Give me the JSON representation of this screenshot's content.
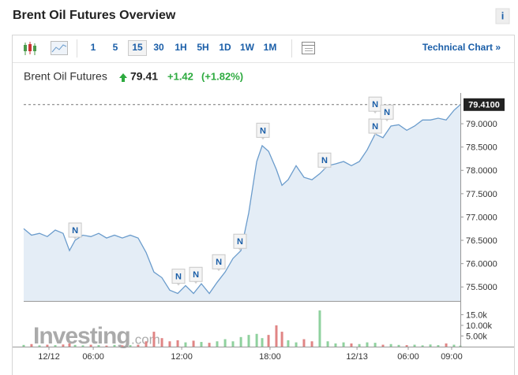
{
  "header": {
    "title": "Brent Oil Futures Overview",
    "info": "i"
  },
  "toolbar": {
    "intervals": [
      "1",
      "5",
      "15",
      "30",
      "1H",
      "5H",
      "1D",
      "1W",
      "1M"
    ],
    "active": 2,
    "technical_chart": "Technical Chart »"
  },
  "quote": {
    "name": "Brent Oil Futures",
    "price": "79.41",
    "change": "+1.42",
    "change_percent": "(+1.82%)"
  },
  "chart_data": {
    "type": "line",
    "color": "#6b9ccc",
    "fill": "#e4edf6",
    "x": [
      0,
      0.53,
      1.07,
      1.6,
      2.14,
      2.67,
      3.1,
      3.48,
      4.01,
      4.55,
      5.08,
      5.61,
      6.15,
      6.68,
      7.22,
      7.75,
      8.29,
      8.82,
      9.36,
      9.89,
      10.43,
      10.96,
      11.5,
      12.03,
      12.57,
      13.1,
      13.64,
      14.17,
      14.71,
      15.24,
      15.78,
      16.15,
      16.58,
      17.11,
      17.49,
      17.91,
      18.45,
      18.98,
      19.52,
      20.05,
      20.59,
      21.12,
      21.66,
      22.19,
      22.73,
      23.26,
      23.8,
      24.33,
      24.87,
      25.4,
      25.94,
      26.47,
      27.01,
      27.54,
      28.07,
      28.61,
      29.14,
      29.57
    ],
    "values": [
      76.75,
      76.61,
      76.65,
      76.58,
      76.72,
      76.65,
      76.28,
      76.5,
      76.61,
      76.58,
      76.65,
      76.55,
      76.61,
      76.55,
      76.61,
      76.55,
      76.24,
      75.82,
      75.7,
      75.43,
      75.36,
      75.53,
      75.36,
      75.57,
      75.36,
      75.6,
      75.82,
      76.11,
      76.28,
      77.09,
      78.19,
      78.53,
      78.41,
      78.02,
      77.68,
      77.8,
      78.1,
      77.85,
      77.8,
      77.93,
      78.1,
      78.14,
      78.19,
      78.1,
      78.19,
      78.44,
      78.78,
      78.7,
      78.95,
      78.98,
      78.86,
      78.95,
      79.08,
      79.08,
      79.12,
      79.08,
      79.29,
      79.41
    ],
    "xlim": [
      0,
      29.57
    ],
    "ylim": [
      75.2,
      79.66
    ],
    "xticks": [
      {
        "value": 1.71,
        "label": "12/12"
      },
      {
        "value": 4.71,
        "label": "06:00"
      },
      {
        "value": 10.7,
        "label": "12:00"
      },
      {
        "value": 16.68,
        "label": "18:00"
      },
      {
        "value": 22.57,
        "label": "12/13"
      },
      {
        "value": 26.04,
        "label": "06:00"
      },
      {
        "value": 28.98,
        "label": "09:00"
      }
    ],
    "yticks": [
      {
        "value": 75.5,
        "label": "75.5000"
      },
      {
        "value": 76,
        "label": "76.0000"
      },
      {
        "value": 76.5,
        "label": "76.5000"
      },
      {
        "value": 77,
        "label": "77.0000"
      },
      {
        "value": 77.5,
        "label": "77.5000"
      },
      {
        "value": 78,
        "label": "78.0000"
      },
      {
        "value": 78.5,
        "label": "78.5000"
      },
      {
        "value": 79,
        "label": "79.0000"
      }
    ],
    "last": {
      "value": 79.41,
      "label": "79.4100"
    },
    "markers": [
      {
        "x": 3.48,
        "y": 76.72,
        "label": "N"
      },
      {
        "x": 10.48,
        "y": 75.73,
        "label": "N"
      },
      {
        "x": 11.66,
        "y": 75.77,
        "label": "N"
      },
      {
        "x": 13.21,
        "y": 76.04,
        "label": "N"
      },
      {
        "x": 14.65,
        "y": 76.48,
        "label": "N"
      },
      {
        "x": 16.2,
        "y": 78.86,
        "label": "N"
      },
      {
        "x": 20.37,
        "y": 78.22,
        "label": "N"
      },
      {
        "x": 23.8,
        "y": 79.42,
        "label": "N"
      },
      {
        "x": 23.8,
        "y": 78.95,
        "label": "N"
      },
      {
        "x": 24.6,
        "y": 79.25,
        "label": "N"
      }
    ],
    "volume": {
      "axis": "y2",
      "up_color": "#8fd19e",
      "down_color": "#e08585",
      "values": [
        800,
        1200,
        600,
        900,
        700,
        1000,
        1500,
        800,
        600,
        900,
        700,
        500,
        800,
        600,
        700,
        900,
        2500,
        7000,
        4000,
        2500,
        3000,
        2000,
        2800,
        2200,
        1800,
        2500,
        3500,
        2500,
        4500,
        5500,
        6000,
        4000,
        5500,
        10000,
        7000,
        3000,
        2000,
        3500,
        2500,
        17000,
        2500,
        1500,
        2000,
        1500,
        1200,
        2000,
        1800,
        900,
        1200,
        800,
        700,
        900,
        600,
        1000,
        700,
        1500,
        900,
        500
      ]
    },
    "y2lim": [
      0,
      18500
    ],
    "y2ticks": [
      {
        "value": 5000,
        "label": "5.00k"
      },
      {
        "value": 10000,
        "label": "10.00k"
      },
      {
        "value": 15000,
        "label": "15.0k"
      }
    ],
    "watermark": {
      "name": "Investing",
      "suffix": ".com"
    }
  }
}
